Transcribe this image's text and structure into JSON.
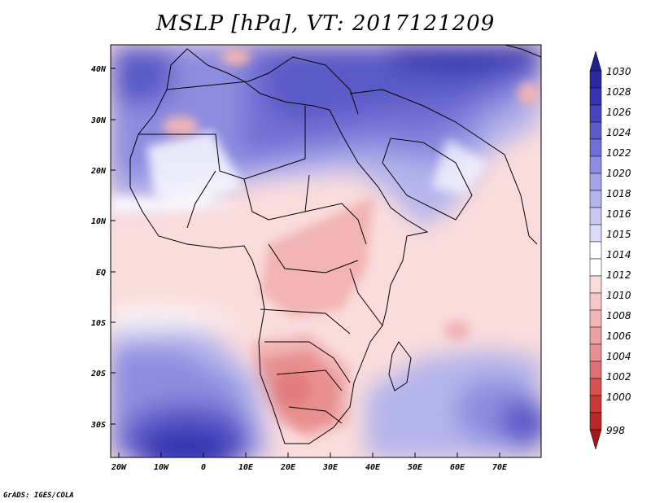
{
  "title": "MSLP [hPa], VT: 2017121209",
  "footer": "GrADS: IGES/COLA",
  "map": {
    "lat_labels": [
      "40N",
      "30N",
      "20N",
      "10N",
      "EQ",
      "10S",
      "20S",
      "30S"
    ],
    "lon_labels": [
      "20W",
      "10W",
      "0",
      "10E",
      "20E",
      "30E",
      "40E",
      "50E",
      "60E",
      "70E"
    ]
  },
  "colorbar": {
    "levels": [
      1030,
      1028,
      1026,
      1024,
      1022,
      1020,
      1018,
      1016,
      1015,
      1014,
      1012,
      1010,
      1008,
      1006,
      1004,
      1002,
      1000,
      998
    ],
    "labels": [
      "1030",
      "1028",
      "1026",
      "1024",
      "1022",
      "1020",
      "1018",
      "1016",
      "1015",
      "1014",
      "1012",
      "1010",
      "1008",
      "1006",
      "1004",
      "1002",
      "1000",
      "998"
    ],
    "colors": {
      "max_arrow": "#202090",
      "min_arrow": "#a01818",
      "c1028": "#2a2aa0",
      "c1026": "#3434b0",
      "c1024": "#4646bc",
      "c1022": "#5a5ac8",
      "c1020": "#7070d4",
      "c1018": "#8c8ce0",
      "c1016": "#b4b4ec",
      "c1015": "#dcdcf8",
      "c1014": "#ffffff",
      "c1012": "#fadcdc",
      "c1010": "#f2b4b4",
      "c1008": "#e89090",
      "c1006": "#e07070",
      "c1004": "#d85050",
      "c1002": "#cc3838",
      "c1000": "#b82828"
    }
  }
}
